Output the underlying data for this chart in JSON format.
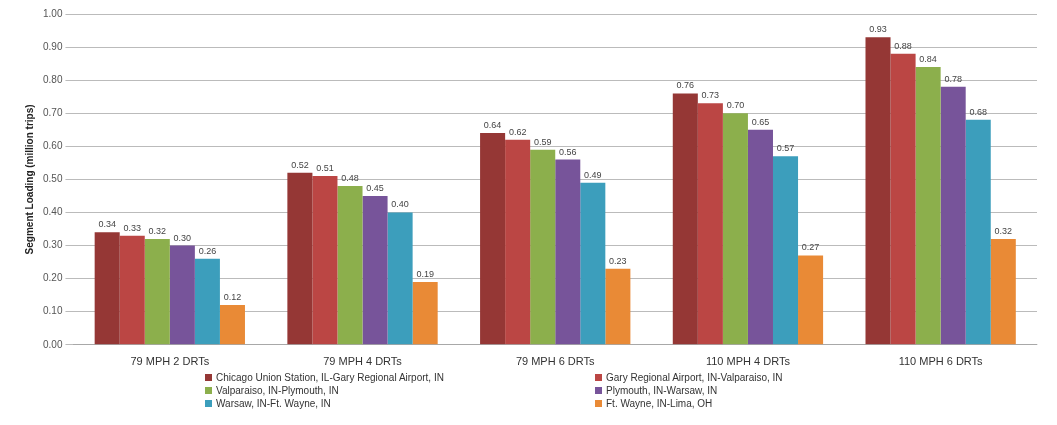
{
  "chart_data": {
    "type": "bar",
    "ylabel": "Segment Loading (million trips)",
    "categories": [
      "79 MPH 2 DRTs",
      "79 MPH 4 DRTs",
      "79 MPH 6 DRTs",
      "110 MPH 4 DRTs",
      "110 MPH 6 DRTs"
    ],
    "series": [
      {
        "name": "Chicago Union Station, IL-Gary Regional Airport, IN",
        "color": "#953735",
        "values": [
          0.34,
          0.52,
          0.64,
          0.76,
          0.93
        ],
        "value_labels": [
          "0.34",
          "0.52",
          "0.64",
          "0.76",
          "0.93"
        ]
      },
      {
        "name": "Gary Regional Airport, IN-Valparaiso, IN",
        "color": "#bb4644",
        "values": [
          0.33,
          0.51,
          0.62,
          0.73,
          0.88
        ],
        "value_labels": [
          "0.33",
          "0.51",
          "0.62",
          "0.73",
          "0.88"
        ]
      },
      {
        "name": "Valparaiso, IN-Plymouth, IN",
        "color": "#8caf4c",
        "values": [
          0.32,
          0.48,
          0.59,
          0.7,
          0.84
        ],
        "value_labels": [
          "0.32",
          "0.48",
          "0.59",
          "0.70",
          "0.84"
        ]
      },
      {
        "name": "Plymouth, IN-Warsaw, IN",
        "color": "#77549a",
        "values": [
          0.3,
          0.45,
          0.56,
          0.65,
          0.78
        ],
        "value_labels": [
          "0.30",
          "0.45",
          "0.56",
          "0.65",
          "0.78"
        ]
      },
      {
        "name": "Warsaw, IN-Ft. Wayne, IN",
        "color": "#3c9ebc",
        "values": [
          0.26,
          0.4,
          0.49,
          0.57,
          0.68
        ],
        "value_labels": [
          "0.26",
          "0.40",
          "0.49",
          "0.57",
          "0.68"
        ]
      },
      {
        "name": "Ft. Wayne, IN-Lima, OH",
        "color": "#e98a36",
        "values": [
          0.12,
          0.19,
          0.23,
          0.27,
          0.32
        ],
        "value_labels": [
          "0.12",
          "0.19",
          "0.23",
          "0.27",
          "0.32"
        ]
      }
    ],
    "ylim": [
      0,
      1
    ],
    "yticks": [
      {
        "value": 0,
        "label": "0.00"
      },
      {
        "value": 0.1,
        "label": "0.10"
      },
      {
        "value": 0.2,
        "label": "0.20"
      },
      {
        "value": 0.3,
        "label": "0.30"
      },
      {
        "value": 0.4,
        "label": "0.40"
      },
      {
        "value": 0.5,
        "label": "0.50"
      },
      {
        "value": 0.6,
        "label": "0.60"
      },
      {
        "value": 0.7,
        "label": "0.70"
      },
      {
        "value": 0.8,
        "label": "0.80"
      },
      {
        "value": 0.9,
        "label": "0.90"
      },
      {
        "value": 1,
        "label": "1.00"
      }
    ],
    "grid": "y",
    "legend": "bottom"
  }
}
